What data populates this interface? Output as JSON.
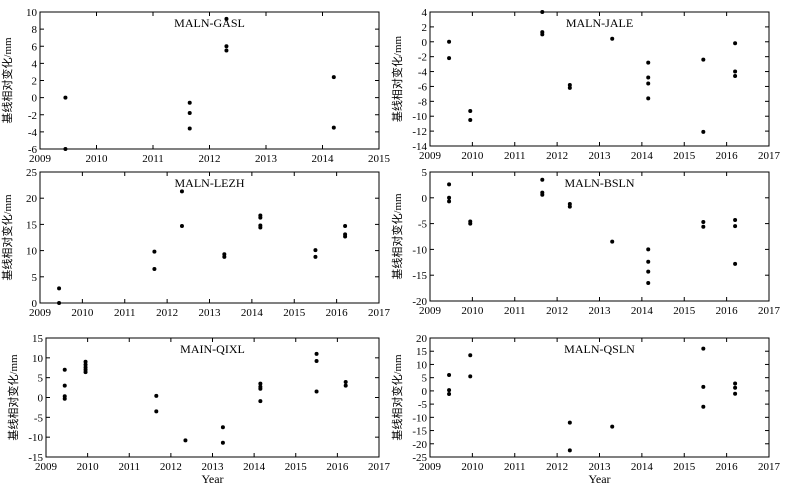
{
  "chart_data": [
    {
      "type": "scatter",
      "title": "MALN-GASL",
      "ylabel": "基线相对变化/mm",
      "xlabel": "",
      "xlim": [
        2009,
        2015
      ],
      "ylim": [
        -6,
        10
      ],
      "xticks": [
        2009,
        2010,
        2011,
        2012,
        2013,
        2014,
        2015
      ],
      "yticks": [
        -6,
        -4,
        -2,
        0,
        2,
        4,
        6,
        8,
        10
      ],
      "points": [
        [
          2009.45,
          0.0
        ],
        [
          2009.45,
          -6.0
        ],
        [
          2011.65,
          -0.6
        ],
        [
          2011.65,
          -1.8
        ],
        [
          2011.65,
          -3.6
        ],
        [
          2012.3,
          9.2
        ],
        [
          2012.3,
          6.0
        ],
        [
          2012.3,
          5.5
        ],
        [
          2014.2,
          2.4
        ],
        [
          2014.2,
          -3.5
        ]
      ]
    },
    {
      "type": "scatter",
      "title": "MALN-JALE",
      "ylabel": "基线相对变化/mm",
      "xlabel": "",
      "xlim": [
        2009,
        2017
      ],
      "ylim": [
        -14,
        4
      ],
      "xticks": [
        2009,
        2010,
        2011,
        2012,
        2013,
        2014,
        2015,
        2016,
        2017
      ],
      "yticks": [
        -14,
        -12,
        -10,
        -8,
        -6,
        -4,
        -2,
        0,
        2,
        4
      ],
      "points": [
        [
          2009.45,
          0.0
        ],
        [
          2009.45,
          -2.2
        ],
        [
          2009.95,
          -9.3
        ],
        [
          2009.95,
          -10.5
        ],
        [
          2011.65,
          4.0
        ],
        [
          2011.65,
          1.3
        ],
        [
          2011.65,
          1.0
        ],
        [
          2012.3,
          -5.8
        ],
        [
          2012.3,
          -6.2
        ],
        [
          2013.3,
          0.4
        ],
        [
          2014.15,
          -2.8
        ],
        [
          2014.15,
          -4.8
        ],
        [
          2014.15,
          -5.6
        ],
        [
          2014.15,
          -7.6
        ],
        [
          2015.45,
          -2.4
        ],
        [
          2015.45,
          -12.1
        ],
        [
          2016.2,
          -0.2
        ],
        [
          2016.2,
          -4.0
        ],
        [
          2016.2,
          -4.6
        ]
      ]
    },
    {
      "type": "scatter",
      "title": "MALN-LEZH",
      "ylabel": "基线相对变化/mm",
      "xlabel": "",
      "xlim": [
        2009,
        2017
      ],
      "ylim": [
        0,
        25
      ],
      "xticks": [
        2009,
        2010,
        2011,
        2012,
        2013,
        2014,
        2015,
        2016,
        2017
      ],
      "yticks": [
        0,
        5,
        10,
        15,
        20,
        25
      ],
      "points": [
        [
          2009.45,
          2.8
        ],
        [
          2009.45,
          0.0
        ],
        [
          2011.7,
          9.8
        ],
        [
          2011.7,
          6.5
        ],
        [
          2012.35,
          21.3
        ],
        [
          2012.35,
          14.7
        ],
        [
          2013.35,
          9.3
        ],
        [
          2013.35,
          8.8
        ],
        [
          2014.2,
          16.7
        ],
        [
          2014.2,
          16.3
        ],
        [
          2014.2,
          14.8
        ],
        [
          2014.2,
          14.4
        ],
        [
          2015.5,
          10.1
        ],
        [
          2015.5,
          8.8
        ],
        [
          2016.2,
          14.7
        ],
        [
          2016.2,
          13.1
        ],
        [
          2016.2,
          12.7
        ]
      ]
    },
    {
      "type": "scatter",
      "title": "MALN-BSLN",
      "ylabel": "基线相对变化/mm",
      "xlabel": "",
      "xlim": [
        2009,
        2017
      ],
      "ylim": [
        -20,
        5
      ],
      "xticks": [
        2009,
        2010,
        2011,
        2012,
        2013,
        2014,
        2015,
        2016,
        2017
      ],
      "yticks": [
        -20,
        -15,
        -10,
        -5,
        0,
        5
      ],
      "points": [
        [
          2009.45,
          2.6
        ],
        [
          2009.45,
          0.0
        ],
        [
          2009.45,
          -0.7
        ],
        [
          2009.95,
          -4.6
        ],
        [
          2009.95,
          -5.0
        ],
        [
          2011.65,
          3.5
        ],
        [
          2011.65,
          1.0
        ],
        [
          2011.65,
          0.6
        ],
        [
          2012.3,
          -1.2
        ],
        [
          2012.3,
          -1.7
        ],
        [
          2013.3,
          -8.5
        ],
        [
          2014.15,
          -10.0
        ],
        [
          2014.15,
          -12.4
        ],
        [
          2014.15,
          -14.3
        ],
        [
          2014.15,
          -16.5
        ],
        [
          2015.45,
          -4.7
        ],
        [
          2015.45,
          -5.6
        ],
        [
          2016.2,
          -4.3
        ],
        [
          2016.2,
          -5.5
        ],
        [
          2016.2,
          -12.8
        ]
      ]
    },
    {
      "type": "scatter",
      "title": "MAIN-QIXL",
      "ylabel": "基线相对变化/mm",
      "xlabel": "Year",
      "xlim": [
        2009,
        2017
      ],
      "ylim": [
        -15,
        15
      ],
      "xticks": [
        2009,
        2010,
        2011,
        2012,
        2013,
        2014,
        2015,
        2016,
        2017
      ],
      "yticks": [
        -15,
        -10,
        -5,
        0,
        5,
        10,
        15
      ],
      "points": [
        [
          2009.45,
          7.0
        ],
        [
          2009.45,
          3.0
        ],
        [
          2009.45,
          0.3
        ],
        [
          2009.45,
          -0.3
        ],
        [
          2009.95,
          9.0
        ],
        [
          2009.95,
          8.3
        ],
        [
          2009.95,
          7.6
        ],
        [
          2009.95,
          7.0
        ],
        [
          2009.95,
          6.4
        ],
        [
          2011.65,
          0.4
        ],
        [
          2011.65,
          -3.5
        ],
        [
          2012.35,
          -10.8
        ],
        [
          2013.25,
          -7.5
        ],
        [
          2013.25,
          -11.4
        ],
        [
          2014.15,
          3.5
        ],
        [
          2014.15,
          2.7
        ],
        [
          2014.15,
          2.2
        ],
        [
          2014.15,
          -0.9
        ],
        [
          2015.5,
          11.0
        ],
        [
          2015.5,
          9.2
        ],
        [
          2015.5,
          1.5
        ],
        [
          2016.2,
          3.9
        ],
        [
          2016.2,
          3.0
        ]
      ]
    },
    {
      "type": "scatter",
      "title": "MALN-QSLN",
      "ylabel": "基线相对变化/mm",
      "xlabel": "Year",
      "xlim": [
        2009,
        2017
      ],
      "ylim": [
        -25,
        20
      ],
      "xticks": [
        2009,
        2010,
        2011,
        2012,
        2013,
        2014,
        2015,
        2016,
        2017
      ],
      "yticks": [
        -25,
        -20,
        -15,
        -10,
        -5,
        0,
        5,
        10,
        15,
        20
      ],
      "points": [
        [
          2009.45,
          6.0
        ],
        [
          2009.45,
          0.3
        ],
        [
          2009.45,
          -1.2
        ],
        [
          2009.95,
          13.5
        ],
        [
          2009.95,
          5.5
        ],
        [
          2012.3,
          -12.0
        ],
        [
          2012.3,
          -22.5
        ],
        [
          2013.3,
          -13.5
        ],
        [
          2015.45,
          16.0
        ],
        [
          2015.45,
          1.5
        ],
        [
          2015.45,
          -6.0
        ],
        [
          2016.2,
          2.8
        ],
        [
          2016.2,
          1.2
        ],
        [
          2016.2,
          -1.1
        ]
      ]
    }
  ]
}
